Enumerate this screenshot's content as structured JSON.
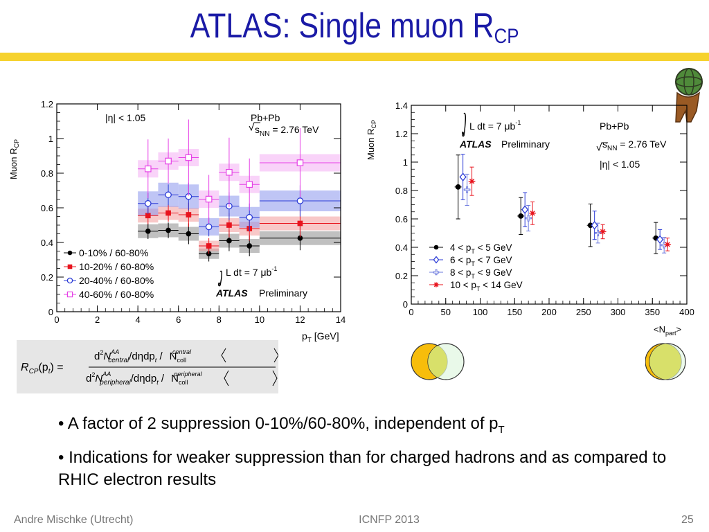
{
  "slide": {
    "title_main": "ATLAS: Single muon R",
    "title_sub": "CP",
    "bullet1_main": "• A factor of 2 suppression 0-10%/60-80%, independent of p",
    "bullet1_sub": "T",
    "bullet2": "• Indications for weaker suppression than for charged hadrons and as compared to RHIC electron results",
    "footer_left": "Andre Mischke (Utrecht)",
    "footer_center": "ICNFP 2013",
    "footer_right": "25",
    "accent_color": "#f6d22e",
    "title_color": "#1a1aa6",
    "icons": [
      "atlas-figure-logo",
      "venn-central-icon",
      "venn-peripheral-icon"
    ]
  },
  "formula": {
    "lhs": "R",
    "lhs_sub": "CP",
    "lhs_arg": "(p",
    "lhs_arg_sub": "t",
    "lhs_close": ") =",
    "num_d2": "d",
    "num_sup2": "2",
    "num_N": "N",
    "num_sup": "AA",
    "num_sub": "central",
    "num_rest": "/dηdp",
    "num_rest_sub": "t",
    "num_slash": " /",
    "num_ncoll": "N",
    "num_ncoll_sub": "coll",
    "num_ncoll_sup": "central",
    "den_d2": "d",
    "den_sup2": "2",
    "den_N": "N",
    "den_sup": "AA",
    "den_sub": "peripheral",
    "den_rest": "/dηdp",
    "den_rest_sub": "t",
    "den_slash": " /",
    "den_ncoll": "N",
    "den_ncoll_sub": "coll",
    "den_ncoll_sup": "peripheral"
  },
  "chart_data": [
    {
      "type": "scatter",
      "title": "",
      "xlabel_main": "p",
      "xlabel_sub": "T",
      "xlabel_rest": " [GeV]",
      "ylabel_main": "Muon R",
      "ylabel_sub": "CP",
      "xlim": [
        0,
        14
      ],
      "ylim": [
        0,
        1.2
      ],
      "xticks": [
        "0",
        "2",
        "4",
        "6",
        "8",
        "10",
        "12",
        "14"
      ],
      "yticks": [
        "0",
        "0.2",
        "0.4",
        "0.6",
        "0.8",
        "1",
        "1.2"
      ],
      "grid": false,
      "legend_position": "bottom-left",
      "annotations": {
        "eta_cut": "|η| < 1.05",
        "system": "Pb+Pb",
        "energy_s": "s",
        "energy_sub": "NN",
        "energy_rest": " = 2.76 TeV",
        "lumi_l": "L dt = 7 ",
        "lumi_unit": "μb",
        "lumi_sup": "-1",
        "atlas": "ATLAS",
        "prelim": "Preliminary"
      },
      "bin_edges": [
        4,
        5,
        6,
        7,
        8,
        9,
        10,
        14
      ],
      "series": [
        {
          "name": "0-10% / 60-80%",
          "color": "#000000",
          "marker": "circle-filled",
          "band_color": "#8c8c8c",
          "x": [
            4.5,
            5.5,
            6.5,
            7.5,
            8.5,
            9.5,
            12
          ],
          "y": [
            0.465,
            0.47,
            0.45,
            0.335,
            0.41,
            0.38,
            0.425
          ],
          "stat_err": [
            0.045,
            0.045,
            0.06,
            0.045,
            0.06,
            0.06,
            0.07
          ],
          "sys_err": [
            0.04,
            0.04,
            0.04,
            0.03,
            0.04,
            0.04,
            0.04
          ]
        },
        {
          "name": "10-20% / 60-80%",
          "color": "#e8141e",
          "marker": "square-filled",
          "band_color": "#f29a9a",
          "x": [
            4.5,
            5.5,
            6.5,
            7.5,
            8.5,
            9.5,
            12
          ],
          "y": [
            0.555,
            0.57,
            0.56,
            0.38,
            0.5,
            0.48,
            0.51
          ],
          "stat_err": [
            0.05,
            0.05,
            0.07,
            0.045,
            0.07,
            0.07,
            0.08
          ],
          "sys_err": [
            0.04,
            0.04,
            0.04,
            0.03,
            0.04,
            0.04,
            0.04
          ]
        },
        {
          "name": "20-40% / 60-80%",
          "color": "#2b3bd6",
          "marker": "circle-open",
          "band_color": "#8a96ec",
          "x": [
            4.5,
            5.5,
            6.5,
            7.5,
            8.5,
            9.5,
            12
          ],
          "y": [
            0.625,
            0.675,
            0.665,
            0.49,
            0.61,
            0.545,
            0.64
          ],
          "stat_err": [
            0.06,
            0.06,
            0.08,
            0.055,
            0.08,
            0.08,
            0.09
          ],
          "sys_err": [
            0.07,
            0.07,
            0.07,
            0.05,
            0.06,
            0.06,
            0.06
          ]
        },
        {
          "name": "40-60% / 60-80%",
          "color": "#e640e6",
          "marker": "square-open",
          "band_color": "#f4aef4",
          "x": [
            4.5,
            5.5,
            6.5,
            7.5,
            8.5,
            9.5,
            12
          ],
          "y": [
            0.825,
            0.87,
            0.89,
            0.65,
            0.805,
            0.735,
            0.86
          ],
          "stat_err": [
            0.17,
            0.13,
            0.22,
            0.14,
            0.2,
            0.15,
            0.2
          ],
          "sys_err": [
            0.05,
            0.05,
            0.05,
            0.05,
            0.05,
            0.05,
            0.05
          ]
        }
      ]
    },
    {
      "type": "scatter",
      "title": "",
      "xlabel_main": "<N",
      "xlabel_sub": "part",
      "xlabel_rest": ">",
      "ylabel_main": "Muon R",
      "ylabel_sub": "CP",
      "xlim": [
        0,
        400
      ],
      "ylim": [
        0,
        1.4
      ],
      "xticks": [
        "0",
        "50",
        "100",
        "150",
        "200",
        "250",
        "300",
        "350",
        "400"
      ],
      "yticks": [
        "0",
        "0.2",
        "0.4",
        "0.6",
        "0.8",
        "1",
        "1.2",
        "1.4"
      ],
      "grid": false,
      "legend_position": "bottom-left",
      "annotations": {
        "lumi_l": "L dt = 7 ",
        "lumi_unit": "μb",
        "lumi_sup": "-1",
        "atlas": "ATLAS",
        "prelim": "Preliminary",
        "system": "Pb+Pb",
        "energy_s": "s",
        "energy_sub": "NN",
        "energy_rest": " = 2.76 TeV",
        "eta_cut": "|η| < 1.05"
      },
      "series": [
        {
          "name_a": "4 < p",
          "name_sub": "T",
          "name_b": " < 5 GeV",
          "color": "#000000",
          "marker": "circle-filled",
          "x": [
            68,
            159,
            260,
            355
          ],
          "y": [
            0.825,
            0.62,
            0.555,
            0.465
          ],
          "err": [
            0.225,
            0.13,
            0.15,
            0.11
          ]
        },
        {
          "name_a": "6 < p",
          "name_sub": "T",
          "name_b": " < 7 GeV",
          "color": "#2b3bd6",
          "marker": "diamond-open",
          "x": [
            75,
            165,
            266,
            361
          ],
          "y": [
            0.895,
            0.665,
            0.555,
            0.455
          ],
          "err": [
            0.16,
            0.12,
            0.1,
            0.07
          ]
        },
        {
          "name_a": "8 < p",
          "name_sub": "T",
          "name_b": " < 9 GeV",
          "color": "#6b78de",
          "marker": "cross-open",
          "x": [
            81,
            170,
            271,
            367
          ],
          "y": [
            0.805,
            0.605,
            0.5,
            0.415
          ],
          "err": [
            0.11,
            0.09,
            0.07,
            0.055
          ]
        },
        {
          "name_a": "10 < p",
          "name_sub": "T",
          "name_b": " < 14 GeV",
          "color": "#e8141e",
          "marker": "star",
          "x": [
            88,
            176,
            278,
            372
          ],
          "y": [
            0.865,
            0.64,
            0.51,
            0.42
          ],
          "err": [
            0.1,
            0.08,
            0.05,
            0.045
          ]
        }
      ]
    }
  ]
}
